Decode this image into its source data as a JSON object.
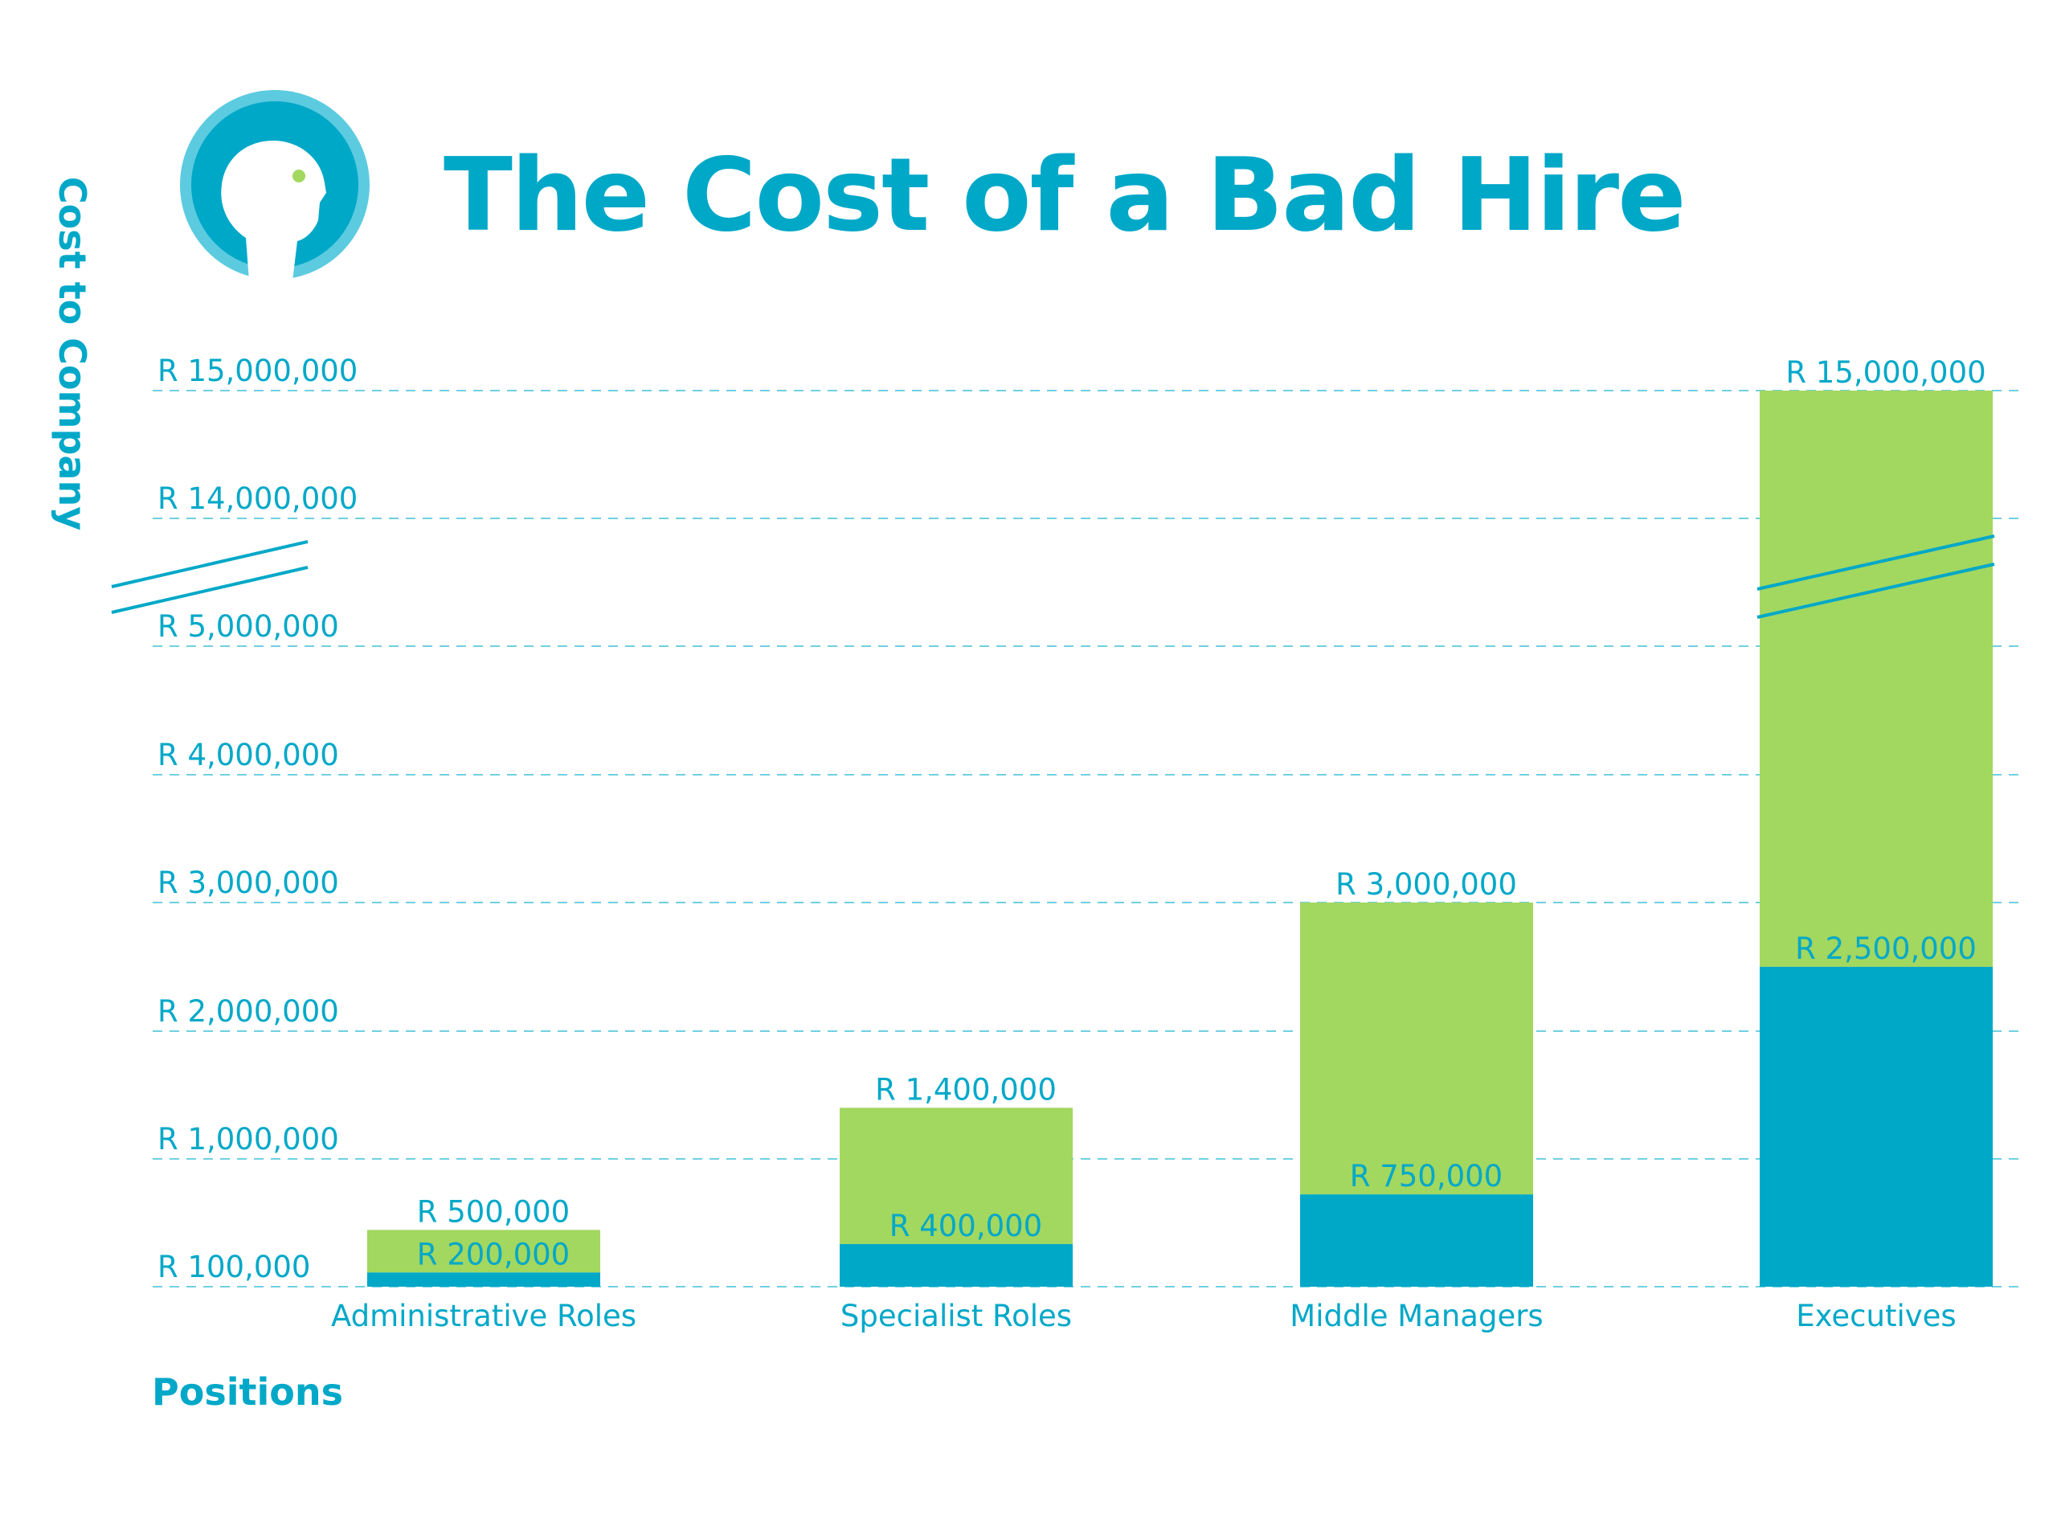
{
  "title": "The Cost of a Bad Hire",
  "colors": {
    "accent": "#00a8c8",
    "green": "#a2d760",
    "gridline": "#6fd0e0",
    "background": "#ffffff"
  },
  "logo": {
    "icon": "head-silhouette-icon"
  },
  "chart_data": {
    "type": "bar",
    "stacked": true,
    "title": "The Cost of a Bad Hire",
    "xlabel": "Positions",
    "ylabel": "Cost to Company",
    "axis_break": true,
    "grid": true,
    "categories": [
      "Administrative Roles",
      "Specialist Roles",
      "Middle Managers",
      "Executives"
    ],
    "y_ticks": [
      {
        "value": 100000,
        "label": "R 100,000"
      },
      {
        "value": 1000000,
        "label": "R 1,000,000"
      },
      {
        "value": 2000000,
        "label": "R 2,000,000"
      },
      {
        "value": 3000000,
        "label": "R 3,000,000"
      },
      {
        "value": 4000000,
        "label": "R 4,000,000"
      },
      {
        "value": 5000000,
        "label": "R 5,000,000"
      },
      {
        "value": 14000000,
        "label": "R 14,000,000"
      },
      {
        "value": 15000000,
        "label": "R 15,000,000"
      }
    ],
    "series": [
      {
        "color": "#00a8c8",
        "values": [
          200000,
          400000,
          750000,
          2500000
        ],
        "labels": [
          "R 200,000",
          "R 400,000",
          "R 750,000",
          "R 2,500,000"
        ]
      },
      {
        "color": "#a2d760",
        "values": [
          500000,
          1400000,
          3000000,
          15000000
        ],
        "labels": [
          "R 500,000",
          "R 1,400,000",
          "R 3,000,000",
          "R 15,000,000"
        ]
      }
    ]
  }
}
